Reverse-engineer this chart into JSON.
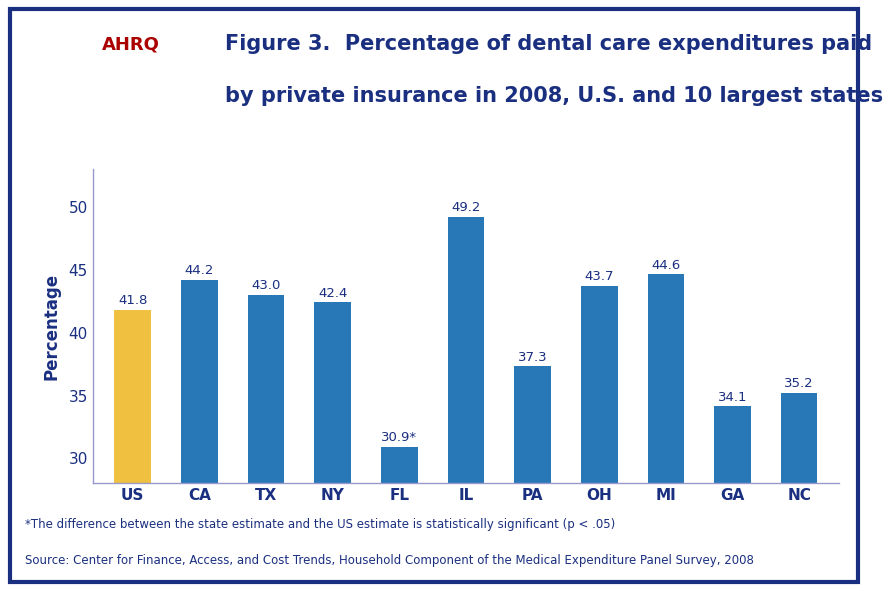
{
  "categories": [
    "US",
    "CA",
    "TX",
    "NY",
    "FL",
    "IL",
    "PA",
    "OH",
    "MI",
    "GA",
    "NC"
  ],
  "values": [
    41.8,
    44.2,
    43.0,
    42.4,
    30.9,
    49.2,
    37.3,
    43.7,
    44.6,
    34.1,
    35.2
  ],
  "labels": [
    "41.8",
    "44.2",
    "43.0",
    "42.4",
    "30.9*",
    "49.2",
    "37.3",
    "43.7",
    "44.6",
    "34.1",
    "35.2"
  ],
  "bar_colors": [
    "#F0C040",
    "#2878B8",
    "#2878B8",
    "#2878B8",
    "#2878B8",
    "#2878B8",
    "#2878B8",
    "#2878B8",
    "#2878B8",
    "#2878B8",
    "#2878B8"
  ],
  "title_line1": "Figure 3.  Percentage of dental care expenditures paid",
  "title_line2": "by private insurance in 2008, U.S. and 10 largest states",
  "ylabel": "Percentage",
  "ylim": [
    28,
    53
  ],
  "yticks": [
    30,
    35,
    40,
    45,
    50
  ],
  "footnote1": "*The difference between the state estimate and the US estimate is statistically significant (p < .05)",
  "footnote2": "Source: Center for Finance, Access, and Cost Trends, Household Component of the Medical Expenditure Panel Survey, 2008",
  "title_color": "#1A2F80",
  "axis_color": "#9999CC",
  "label_fontsize": 9.5,
  "tick_label_fontsize": 11,
  "ylabel_fontsize": 12,
  "title_fontsize": 15,
  "footnote_fontsize": 8.5,
  "background_color": "#FFFFFF",
  "header_bg_color": "#EEF3FB",
  "outer_border_color": "#1A2F80",
  "separator_color": "#1A2F80",
  "plot_area_color": "#FFFFFF",
  "logo_bg_color": "#29A8E0"
}
